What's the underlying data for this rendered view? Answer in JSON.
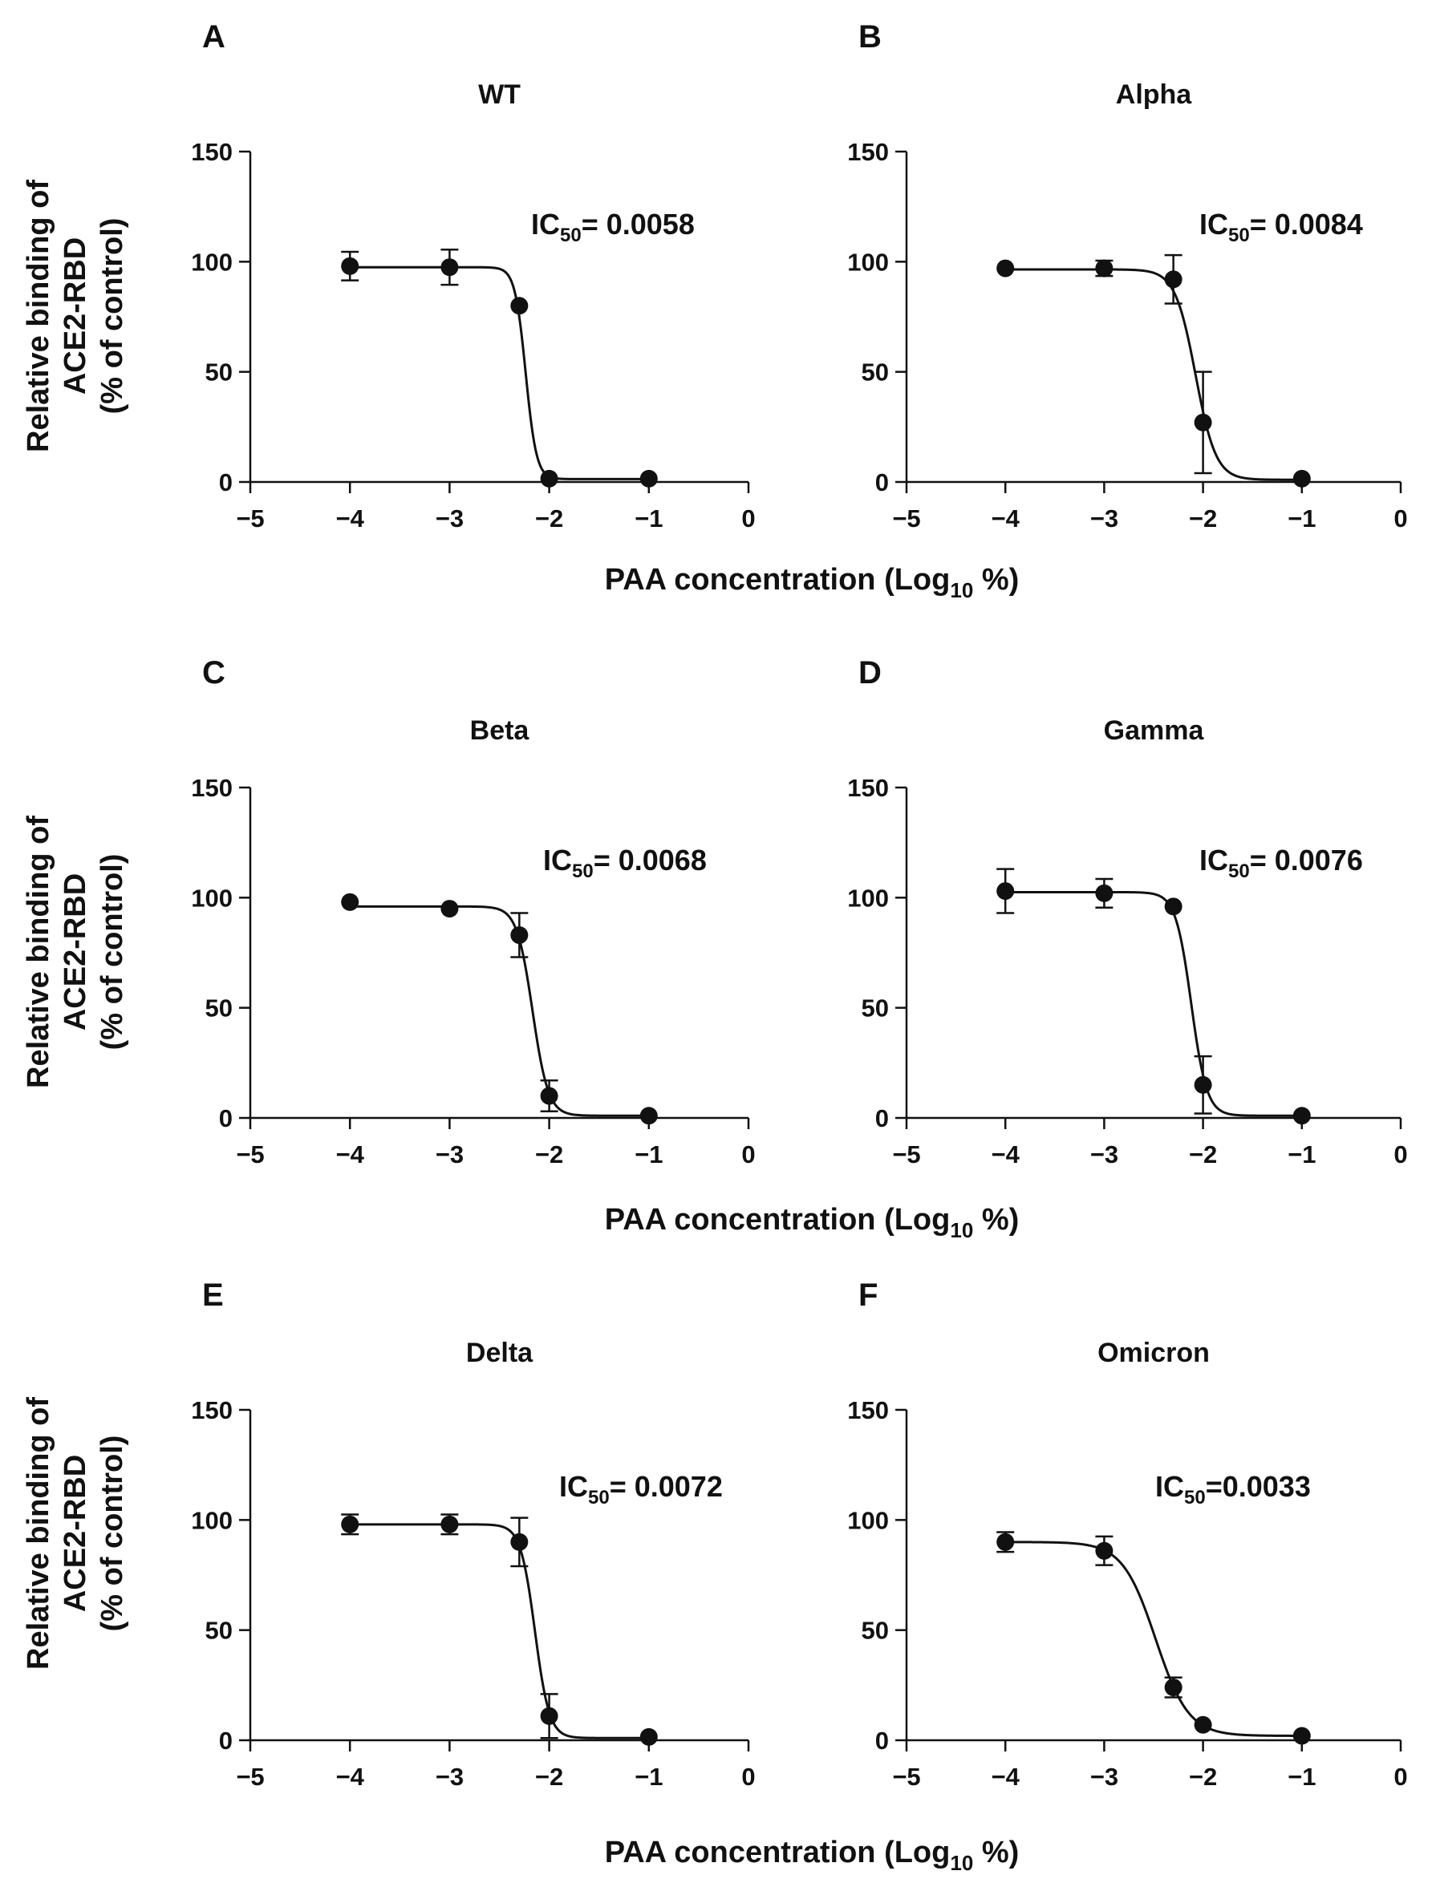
{
  "chart_data": [
    {
      "panel": "A",
      "title": "WT",
      "type": "scatter",
      "ic50_text": {
        "prefix": "IC",
        "sub": "50",
        "value": "= 0.0058"
      },
      "xlim": [
        -5,
        0
      ],
      "ylim": [
        0,
        150
      ],
      "x_ticks": [
        "−5",
        "−4",
        "−3",
        "−2",
        "−1",
        "0"
      ],
      "y_ticks": [
        "0",
        "50",
        "100",
        "150"
      ],
      "x": [
        -4,
        -3,
        -2.3,
        -2,
        -1
      ],
      "y": [
        98,
        97.5,
        80,
        1.5,
        1.5
      ],
      "err": [
        6.5,
        8,
        0,
        0,
        0
      ],
      "fit": {
        "top": 97.5,
        "bottom": 1.3,
        "log_ic50": -2.236,
        "hill": 8
      }
    },
    {
      "panel": "B",
      "title": "Alpha",
      "type": "scatter",
      "ic50_text": {
        "prefix": "IC",
        "sub": "50",
        "value": "= 0.0084"
      },
      "xlim": [
        -5,
        0
      ],
      "ylim": [
        0,
        150
      ],
      "x_ticks": [
        "−5",
        "−4",
        "−3",
        "−2",
        "−1",
        "0"
      ],
      "y_ticks": [
        "0",
        "50",
        "100",
        "150"
      ],
      "x": [
        -4,
        -3,
        -2.3,
        -2,
        -1
      ],
      "y": [
        97,
        97,
        92,
        27,
        1.5
      ],
      "err": [
        0,
        3.5,
        11,
        23,
        0
      ],
      "fit": {
        "top": 96.5,
        "bottom": 1,
        "log_ic50": -2.076,
        "hill": 4.2
      }
    },
    {
      "panel": "C",
      "title": "Beta",
      "type": "scatter",
      "ic50_text": {
        "prefix": "IC",
        "sub": "50",
        "value": "= 0.0068"
      },
      "xlim": [
        -5,
        0
      ],
      "ylim": [
        0,
        150
      ],
      "x_ticks": [
        "−5",
        "−4",
        "−3",
        "−2",
        "−1",
        "0"
      ],
      "y_ticks": [
        "0",
        "50",
        "100",
        "150"
      ],
      "x": [
        -4,
        -3,
        -2.3,
        -2,
        -1
      ],
      "y": [
        98,
        95,
        83,
        10,
        1
      ],
      "err": [
        0,
        0,
        10,
        7,
        0
      ],
      "fit": {
        "top": 96,
        "bottom": 1,
        "log_ic50": -2.167,
        "hill": 5.5
      }
    },
    {
      "panel": "D",
      "title": "Gamma",
      "type": "scatter",
      "ic50_text": {
        "prefix": "IC",
        "sub": "50",
        "value": "=  0.0076"
      },
      "xlim": [
        -5,
        0
      ],
      "ylim": [
        0,
        150
      ],
      "x_ticks": [
        "−5",
        "−4",
        "−3",
        "−2",
        "−1",
        "0"
      ],
      "y_ticks": [
        "0",
        "50",
        "100",
        "150"
      ],
      "x": [
        -4,
        -3,
        -2.3,
        -2,
        -1
      ],
      "y": [
        103,
        102,
        96,
        15,
        1
      ],
      "err": [
        10,
        6.5,
        0,
        13,
        0
      ],
      "fit": {
        "top": 102.5,
        "bottom": 1,
        "log_ic50": -2.119,
        "hill": 5.5
      }
    },
    {
      "panel": "E",
      "title": "Delta",
      "type": "scatter",
      "ic50_text": {
        "prefix": "IC",
        "sub": "50",
        "value": "= 0.0072"
      },
      "xlim": [
        -5,
        0
      ],
      "ylim": [
        0,
        150
      ],
      "x_ticks": [
        "−5",
        "−4",
        "−3",
        "−2",
        "−1",
        "0"
      ],
      "y_ticks": [
        "0",
        "50",
        "100",
        "150"
      ],
      "x": [
        -4,
        -3,
        -2.3,
        -2,
        -1
      ],
      "y": [
        98,
        98,
        90,
        11,
        1.5
      ],
      "err": [
        4.5,
        4.5,
        11,
        10,
        0
      ],
      "fit": {
        "top": 98,
        "bottom": 1,
        "log_ic50": -2.143,
        "hill": 6
      }
    },
    {
      "panel": "F",
      "title": "Omicron",
      "type": "scatter",
      "ic50_text": {
        "prefix": "IC",
        "sub": "50",
        "value": "=0.0033"
      },
      "xlim": [
        -5,
        0
      ],
      "ylim": [
        0,
        150
      ],
      "x_ticks": [
        "−5",
        "−4",
        "−3",
        "−2",
        "−1",
        "0"
      ],
      "y_ticks": [
        "0",
        "50",
        "100",
        "150"
      ],
      "x": [
        -4,
        -3,
        -2.3,
        -2,
        -1
      ],
      "y": [
        90,
        86,
        24,
        7,
        2
      ],
      "err": [
        4.5,
        6.5,
        4.5,
        0,
        0
      ],
      "fit": {
        "top": 90,
        "bottom": 2,
        "log_ic50": -2.48,
        "hill": 2.6
      }
    }
  ],
  "axis_labels": {
    "y_line1": "Relative binding of",
    "y_line2": "ACE2-RBD",
    "y_line3": "(% of control)",
    "x_main": "PAA concentration (Log",
    "x_sub": "10",
    "x_end": " %)"
  }
}
